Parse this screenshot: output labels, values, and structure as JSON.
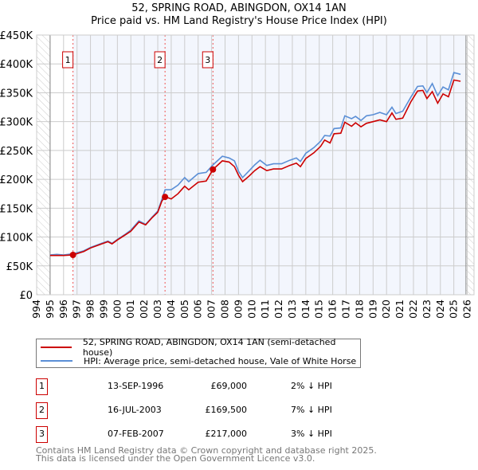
{
  "chart_data": {
    "type": "line",
    "title": "52, SPRING ROAD, ABINGDON, OX14 1AN",
    "subtitle": "Price paid vs. HM Land Registry's House Price Index (HPI)",
    "xlim": [
      1994,
      2026.5
    ],
    "ylim": [
      0,
      450000
    ],
    "x_ticks": [
      "1994",
      "1995",
      "1996",
      "1997",
      "1998",
      "1999",
      "2000",
      "2001",
      "2002",
      "2003",
      "2004",
      "2005",
      "2006",
      "2007",
      "2008",
      "2009",
      "2010",
      "2011",
      "2012",
      "2013",
      "2014",
      "2015",
      "2016",
      "2017",
      "2018",
      "2019",
      "2020",
      "2021",
      "2022",
      "2023",
      "2024",
      "2025",
      "2026"
    ],
    "y_ticks": [
      {
        "v": 0,
        "label": "£0"
      },
      {
        "v": 50000,
        "label": "£50K"
      },
      {
        "v": 100000,
        "label": "£100K"
      },
      {
        "v": 150000,
        "label": "£150K"
      },
      {
        "v": 200000,
        "label": "£200K"
      },
      {
        "v": 250000,
        "label": "£250K"
      },
      {
        "v": 300000,
        "label": "£300K"
      },
      {
        "v": 350000,
        "label": "£350K"
      },
      {
        "v": 400000,
        "label": "£400K"
      },
      {
        "v": 450000,
        "label": "£450K"
      }
    ],
    "grid": true,
    "x": [
      1995.0,
      1995.5,
      1996.0,
      1996.7,
      1997.5,
      1998.0,
      1998.7,
      1999.3,
      1999.6,
      2000.0,
      2000.6,
      2001.0,
      2001.6,
      2002.1,
      2002.6,
      2003.0,
      2003.3,
      2003.54,
      2004.0,
      2004.5,
      2005.0,
      2005.3,
      2006.0,
      2006.6,
      2007.1,
      2007.8,
      2008.3,
      2008.7,
      2009.0,
      2009.3,
      2009.8,
      2010.2,
      2010.6,
      2011.1,
      2011.6,
      2012.2,
      2012.8,
      2013.3,
      2013.6,
      2014.0,
      2014.6,
      2015.1,
      2015.4,
      2015.8,
      2016.1,
      2016.6,
      2016.9,
      2017.4,
      2017.7,
      2018.1,
      2018.5,
      2019.0,
      2019.5,
      2020.0,
      2020.4,
      2020.7,
      2021.2,
      2021.8,
      2022.3,
      2022.7,
      2023.0,
      2023.4,
      2023.8,
      2024.2,
      2024.6,
      2025.0,
      2025.5
    ],
    "series": [
      {
        "name": "52, SPRING ROAD, ABINGDON, OX14 1AN (semi-detached house)",
        "color": "#cc0000",
        "values": [
          68,
          68,
          68,
          69,
          75,
          81,
          87,
          92,
          88,
          95,
          104,
          110,
          126,
          121,
          134,
          143,
          162,
          170,
          166,
          175,
          188,
          182,
          195,
          197,
          217,
          232,
          230,
          222,
          207,
          196,
          206,
          215,
          222,
          215,
          218,
          218,
          224,
          228,
          222,
          236,
          246,
          257,
          268,
          263,
          279,
          280,
          299,
          292,
          298,
          291,
          297,
          300,
          303,
          300,
          315,
          304,
          306,
          334,
          353,
          354,
          340,
          352,
          332,
          348,
          343,
          372,
          370
        ]
      },
      {
        "name": "HPI: Average price, semi-detached house, Vale of White Horse",
        "color": "#5b8fd6",
        "values": [
          69,
          70,
          69,
          71,
          76,
          82,
          88,
          93,
          89,
          96,
          105,
          112,
          128,
          122,
          135,
          145,
          165,
          182,
          182,
          190,
          203,
          196,
          210,
          212,
          225,
          240,
          237,
          232,
          214,
          203,
          215,
          225,
          233,
          224,
          227,
          227,
          233,
          237,
          231,
          245,
          255,
          266,
          276,
          275,
          288,
          289,
          310,
          305,
          309,
          302,
          310,
          312,
          316,
          312,
          325,
          314,
          318,
          342,
          361,
          362,
          350,
          366,
          345,
          360,
          355,
          385,
          382
        ]
      }
    ],
    "value_unit": "thousand GBP",
    "hatched_before": 1995,
    "hatched_after": 2025.9,
    "sales": [
      {
        "label": "1",
        "x": 1996.7,
        "value": 69000,
        "date": "13-SEP-1996",
        "price": "£69,000",
        "hpi": "2% ↓ HPI"
      },
      {
        "label": "2",
        "x": 2003.54,
        "value": 169500,
        "date": "16-JUL-2003",
        "price": "£169,500",
        "hpi": "7% ↓ HPI"
      },
      {
        "label": "3",
        "x": 2007.1,
        "value": 217000,
        "date": "07-FEB-2007",
        "price": "£217,000",
        "hpi": "3% ↓ HPI"
      }
    ],
    "legend_placement": "bottom"
  },
  "footer": {
    "line1": "Contains HM Land Registry data © Crown copyright and database right 2025.",
    "line2": "This data is licensed under the Open Government Licence v3.0."
  }
}
